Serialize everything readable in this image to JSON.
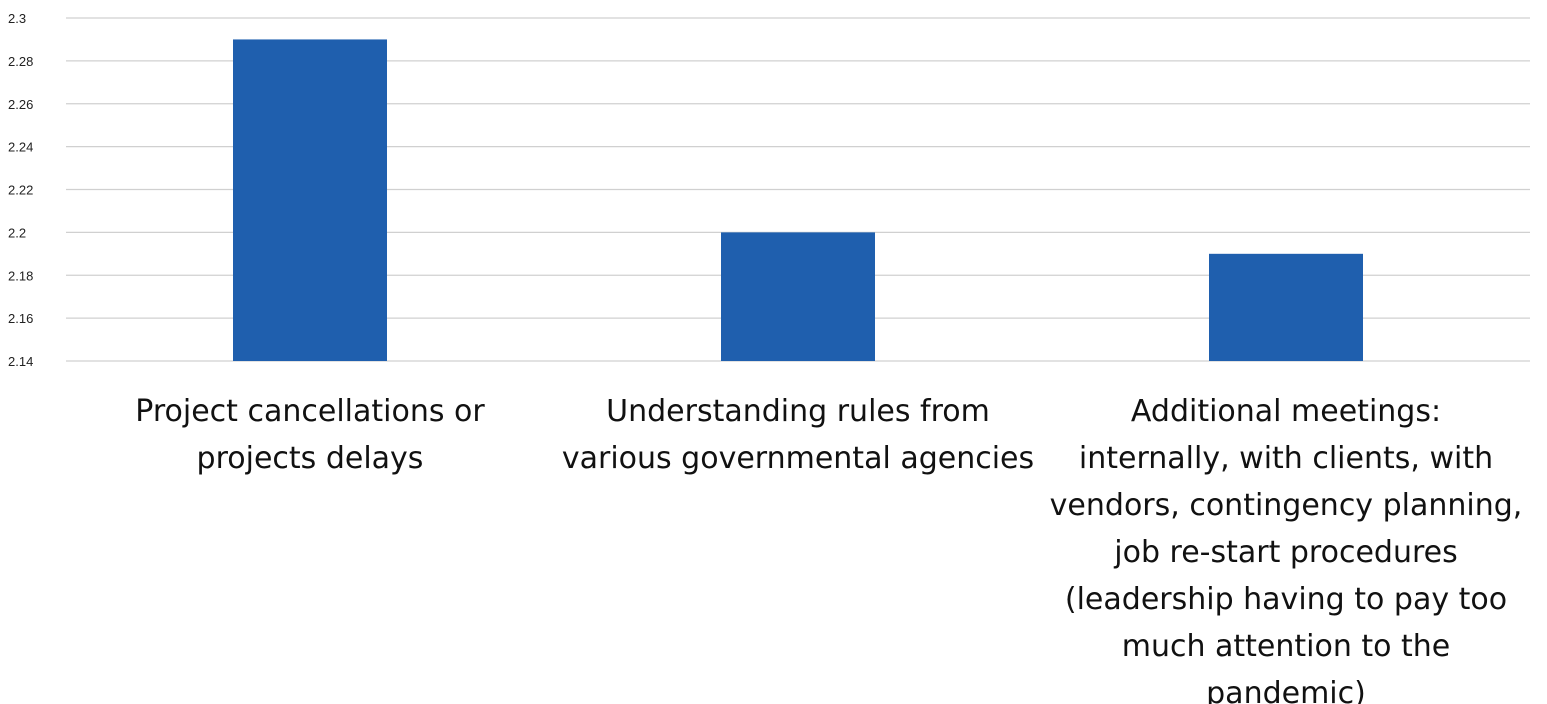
{
  "chart_data": {
    "type": "bar",
    "title": "",
    "xlabel": "",
    "ylabel": "",
    "categories": [
      "Project cancellations or projects delays",
      "Understanding rules from various governmental agencies",
      "Additional meetings: internally, with clients, with vendors, contingency planning, job re-start procedures (leadership having to pay too much attention to the pandemic)"
    ],
    "category_label_lines": [
      [
        "Project cancellations or",
        "projects delays"
      ],
      [
        "Understanding rules from",
        "various governmental agencies"
      ],
      [
        "Additional meetings:",
        "internally, with clients, with",
        "vendors, contingency planning,",
        "job re-start procedures",
        "(leadership having to pay too",
        "much attention to the",
        "pandemic)"
      ]
    ],
    "values": [
      2.29,
      2.2,
      2.19
    ],
    "ylim": [
      2.14,
      2.3
    ],
    "yticks": [
      "2.14",
      "2.16",
      "2.18",
      "2.2",
      "2.22",
      "2.24",
      "2.26",
      "2.28",
      "2.3"
    ],
    "grid": true,
    "legend": "none",
    "bar_color": "#1f5fae",
    "grid_color": "#d0d0d0"
  }
}
